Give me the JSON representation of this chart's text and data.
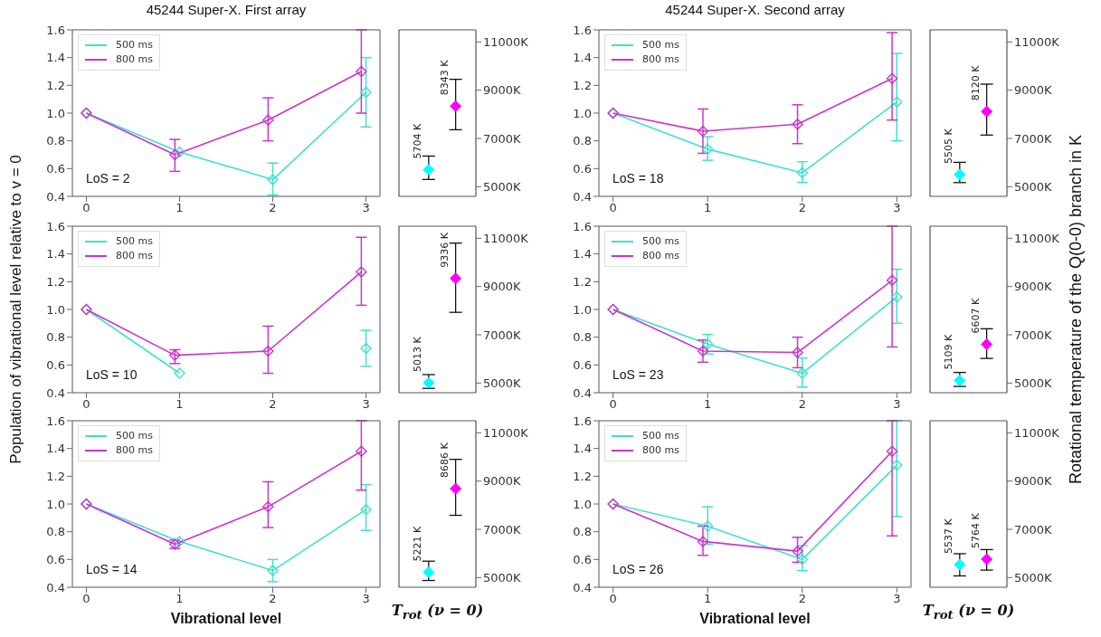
{
  "chart_data": [
    {
      "type": "line",
      "title": "45244 Super-X.  First array",
      "xlim": [
        -0.15,
        3.15
      ],
      "xticks": [
        0,
        1,
        2,
        3
      ],
      "ylim": [
        0.4,
        1.6
      ],
      "yticks": [
        0.4,
        0.6,
        0.8,
        {
          "value": 1,
          "label": "1.0"
        },
        1.2,
        1.4,
        1.6
      ],
      "legend": "top left",
      "marker": "diamond",
      "annotations": [
        "LoS = 2"
      ],
      "series": [
        {
          "name": "500 ms",
          "color": "#40e0d0",
          "x": [
            0,
            1,
            2,
            3
          ],
          "values": [
            1.0,
            0.72,
            0.52,
            1.15
          ],
          "errors": [
            null,
            null,
            [
              0.41,
              0.64
            ],
            [
              0.9,
              1.4
            ]
          ]
        },
        {
          "name": "800 ms",
          "color": "#cc33cc",
          "x": [
            0,
            0.95,
            1.95,
            2.95
          ],
          "values": [
            1.0,
            0.7,
            0.95,
            1.3
          ],
          "errors": [
            null,
            [
              0.58,
              0.81
            ],
            [
              0.8,
              1.11
            ],
            [
              1.0,
              1.6
            ]
          ]
        }
      ]
    },
    {
      "type": "scatter",
      "categories": [
        null,
        null
      ],
      "ylim": [
        4600,
        11500
      ],
      "yticks": [
        {
          "value": 5000,
          "label": "5000K"
        },
        {
          "value": 7000,
          "label": "7000K"
        },
        {
          "value": 9000,
          "label": "9000K"
        },
        {
          "value": 11000,
          "label": "11000K"
        }
      ],
      "marker": "diamond",
      "series": [
        {
          "color": "#00ffff",
          "values": [
            5704,
            null
          ],
          "errors": [
            [
              5300,
              6270
            ],
            null
          ],
          "value_labels": [
            "5704 K",
            null
          ]
        },
        {
          "color": "#ff00ff",
          "values": [
            null,
            8343
          ],
          "errors": [
            null,
            [
              7360,
              9450
            ]
          ],
          "value_labels": [
            null,
            "8343 K"
          ]
        }
      ]
    },
    {
      "type": "line",
      "title": "45244 Super-X.  Second array",
      "xlim": [
        -0.15,
        3.15
      ],
      "xticks": [
        0,
        1,
        2,
        3
      ],
      "ylim": [
        0.4,
        1.6
      ],
      "yticks": [
        0.4,
        0.6,
        0.8,
        {
          "value": 1,
          "label": "1.0"
        },
        1.2,
        1.4,
        1.6
      ],
      "legend": "top left",
      "marker": "diamond",
      "annotations": [
        "LoS = 18"
      ],
      "series": [
        {
          "name": "500 ms",
          "color": "#40e0d0",
          "x": [
            0,
            1,
            2,
            3
          ],
          "values": [
            1.0,
            0.74,
            0.57,
            1.08
          ],
          "errors": [
            null,
            [
              0.66,
              0.83
            ],
            [
              0.5,
              0.65
            ],
            [
              0.8,
              1.43
            ]
          ]
        },
        {
          "name": "800 ms",
          "color": "#cc33cc",
          "x": [
            0,
            0.95,
            1.95,
            2.95
          ],
          "values": [
            1.0,
            0.87,
            0.92,
            1.25
          ],
          "errors": [
            null,
            [
              0.71,
              1.03
            ],
            [
              0.78,
              1.06
            ],
            [
              0.95,
              1.58
            ]
          ]
        }
      ]
    },
    {
      "type": "scatter",
      "categories": [
        null,
        null
      ],
      "ylim": [
        4600,
        11500
      ],
      "yticks": [
        {
          "value": 5000,
          "label": "5000K"
        },
        {
          "value": 7000,
          "label": "7000K"
        },
        {
          "value": 9000,
          "label": "9000K"
        },
        {
          "value": 11000,
          "label": "11000K"
        }
      ],
      "marker": "diamond",
      "series": [
        {
          "color": "#00ffff",
          "values": [
            5505,
            null
          ],
          "errors": [
            [
              5170,
              6010
            ],
            null
          ],
          "value_labels": [
            "5505 K",
            null
          ]
        },
        {
          "color": "#ff00ff",
          "values": [
            null,
            8120
          ],
          "errors": [
            null,
            [
              7140,
              9250
            ]
          ],
          "value_labels": [
            null,
            "8120 K"
          ]
        }
      ]
    },
    {
      "type": "line",
      "ylabel": "Population of vibrational level relative to v = 0",
      "xlim": [
        -0.15,
        3.15
      ],
      "xticks": [
        0,
        1,
        2,
        3
      ],
      "ylim": [
        0.4,
        1.6
      ],
      "yticks": [
        0.4,
        0.6,
        0.8,
        {
          "value": 1,
          "label": "1.0"
        },
        1.2,
        1.4,
        1.6
      ],
      "legend": "top left",
      "marker": "diamond",
      "annotations": [
        "LoS = 10"
      ],
      "series": [
        {
          "name": "500 ms",
          "color": "#40e0d0",
          "x": [
            0,
            1,
            2,
            3
          ],
          "values": [
            1.0,
            0.54,
            null,
            0.72
          ],
          "errors": [
            null,
            null,
            null,
            [
              0.59,
              0.85
            ]
          ]
        },
        {
          "name": "800 ms",
          "color": "#cc33cc",
          "x": [
            0,
            0.95,
            1.95,
            2.95
          ],
          "values": [
            1.0,
            0.67,
            0.7,
            1.27
          ],
          "errors": [
            null,
            [
              0.61,
              0.71
            ],
            [
              0.54,
              0.88
            ],
            [
              1.03,
              1.52
            ]
          ]
        }
      ]
    },
    {
      "type": "scatter",
      "categories": [
        null,
        null
      ],
      "ylim": [
        4600,
        11500
      ],
      "yticks": [
        {
          "value": 5000,
          "label": "5000K"
        },
        {
          "value": 7000,
          "label": "7000K"
        },
        {
          "value": 9000,
          "label": "9000K"
        },
        {
          "value": 11000,
          "label": "11000K"
        }
      ],
      "marker": "diamond",
      "series": [
        {
          "color": "#00ffff",
          "values": [
            5013,
            null
          ],
          "errors": [
            [
              4780,
              5350
            ],
            null
          ],
          "value_labels": [
            "5013 K",
            null
          ]
        },
        {
          "color": "#ff00ff",
          "values": [
            null,
            9336
          ],
          "errors": [
            null,
            [
              7930,
              10800
            ]
          ],
          "value_labels": [
            null,
            "9336 K"
          ]
        }
      ]
    },
    {
      "type": "line",
      "xlim": [
        -0.15,
        3.15
      ],
      "xticks": [
        0,
        1,
        2,
        3
      ],
      "ylim": [
        0.4,
        1.6
      ],
      "yticks": [
        0.4,
        0.6,
        0.8,
        {
          "value": 1,
          "label": "1.0"
        },
        1.2,
        1.4,
        1.6
      ],
      "legend": "top left",
      "marker": "diamond",
      "annotations": [
        "LoS = 23"
      ],
      "series": [
        {
          "name": "500 ms",
          "color": "#40e0d0",
          "x": [
            0,
            1,
            2,
            3
          ],
          "values": [
            1.0,
            0.75,
            0.54,
            1.09
          ],
          "errors": [
            null,
            [
              0.68,
              0.82
            ],
            [
              0.44,
              0.65
            ],
            [
              0.9,
              1.29
            ]
          ]
        },
        {
          "name": "800 ms",
          "color": "#cc33cc",
          "x": [
            0,
            0.95,
            1.95,
            2.95
          ],
          "values": [
            1.0,
            0.7,
            0.69,
            1.21
          ],
          "errors": [
            null,
            [
              0.62,
              0.78
            ],
            [
              0.58,
              0.8
            ],
            [
              0.73,
              1.6
            ]
          ]
        }
      ]
    },
    {
      "type": "scatter",
      "ylabel": "Rotational temperature of the Q(0-0) branch in K",
      "categories": [
        null,
        null
      ],
      "ylim": [
        4600,
        11500
      ],
      "yticks": [
        {
          "value": 5000,
          "label": "5000K"
        },
        {
          "value": 7000,
          "label": "7000K"
        },
        {
          "value": 9000,
          "label": "9000K"
        },
        {
          "value": 11000,
          "label": "11000K"
        }
      ],
      "marker": "diamond",
      "series": [
        {
          "color": "#00ffff",
          "values": [
            5109,
            null
          ],
          "errors": [
            [
              4860,
              5440
            ],
            null
          ],
          "value_labels": [
            "5109 K",
            null
          ]
        },
        {
          "color": "#ff00ff",
          "values": [
            null,
            6607
          ],
          "errors": [
            null,
            [
              6020,
              7250
            ]
          ],
          "value_labels": [
            null,
            "6607 K"
          ]
        }
      ]
    },
    {
      "type": "line",
      "xlabel": "Vibrational level",
      "xlim": [
        -0.15,
        3.15
      ],
      "xticks": [
        0,
        1,
        2,
        3
      ],
      "ylim": [
        0.4,
        1.6
      ],
      "yticks": [
        0.4,
        0.6,
        0.8,
        {
          "value": 1,
          "label": "1.0"
        },
        1.2,
        1.4,
        1.6
      ],
      "legend": "top left",
      "marker": "diamond",
      "annotations": [
        "LoS = 14"
      ],
      "series": [
        {
          "name": "500 ms",
          "color": "#40e0d0",
          "x": [
            0,
            1,
            2,
            3
          ],
          "values": [
            1.0,
            0.73,
            0.52,
            0.96
          ],
          "errors": [
            null,
            null,
            [
              0.44,
              0.6
            ],
            [
              0.81,
              1.14
            ]
          ]
        },
        {
          "name": "800 ms",
          "color": "#cc33cc",
          "x": [
            0,
            0.95,
            1.95,
            2.95
          ],
          "values": [
            1.0,
            0.71,
            0.98,
            1.38
          ],
          "errors": [
            null,
            [
              0.68,
              0.74
            ],
            [
              0.83,
              1.16
            ],
            [
              1.1,
              1.6
            ]
          ]
        }
      ]
    },
    {
      "type": "scatter",
      "xlabel": "T$_{rot}$ (ν = 0)",
      "categories": [
        null,
        null
      ],
      "ylim": [
        4600,
        11500
      ],
      "yticks": [
        {
          "value": 5000,
          "label": "5000K"
        },
        {
          "value": 7000,
          "label": "7000K"
        },
        {
          "value": 9000,
          "label": "9000K"
        },
        {
          "value": 11000,
          "label": "11000K"
        }
      ],
      "marker": "diamond",
      "series": [
        {
          "color": "#00ffff",
          "values": [
            5221,
            null
          ],
          "errors": [
            [
              4880,
              5680
            ],
            null
          ],
          "value_labels": [
            "5221 K",
            null
          ]
        },
        {
          "color": "#ff00ff",
          "values": [
            null,
            8686
          ],
          "errors": [
            null,
            [
              7580,
              9900
            ]
          ],
          "value_labels": [
            null,
            "8686 K"
          ]
        }
      ]
    },
    {
      "type": "line",
      "xlabel": "Vibrational level",
      "xlim": [
        -0.15,
        3.15
      ],
      "xticks": [
        0,
        1,
        2,
        3
      ],
      "ylim": [
        0.4,
        1.6
      ],
      "yticks": [
        0.4,
        0.6,
        0.8,
        {
          "value": 1,
          "label": "1.0"
        },
        1.2,
        1.4,
        1.6
      ],
      "legend": "top left",
      "marker": "diamond",
      "annotations": [
        "LoS = 26"
      ],
      "series": [
        {
          "name": "500 ms",
          "color": "#40e0d0",
          "x": [
            0,
            1,
            2,
            3
          ],
          "values": [
            1.0,
            0.84,
            0.6,
            1.28
          ],
          "errors": [
            null,
            [
              0.71,
              0.98
            ],
            [
              0.52,
              0.7
            ],
            [
              0.91,
              1.6
            ]
          ]
        },
        {
          "name": "800 ms",
          "color": "#cc33cc",
          "x": [
            0,
            0.95,
            1.95,
            2.95
          ],
          "values": [
            1.0,
            0.73,
            0.66,
            1.38
          ],
          "errors": [
            null,
            [
              0.63,
              0.84
            ],
            [
              0.58,
              0.76
            ],
            [
              0.77,
              1.6
            ]
          ]
        }
      ]
    },
    {
      "type": "scatter",
      "xlabel": "T$_{rot}$ (ν = 0)",
      "categories": [
        null,
        null
      ],
      "ylim": [
        4600,
        11500
      ],
      "yticks": [
        {
          "value": 5000,
          "label": "5000K"
        },
        {
          "value": 7000,
          "label": "7000K"
        },
        {
          "value": 9000,
          "label": "9000K"
        },
        {
          "value": 11000,
          "label": "11000K"
        }
      ],
      "marker": "diamond",
      "series": [
        {
          "color": "#00ffff",
          "values": [
            5537,
            null
          ],
          "errors": [
            [
              5070,
              5990
            ],
            null
          ],
          "value_labels": [
            "5537 K",
            null
          ]
        },
        {
          "color": "#ff00ff",
          "values": [
            null,
            5764
          ],
          "errors": [
            null,
            [
              5310,
              6160
            ]
          ],
          "value_labels": [
            null,
            "5764 K"
          ]
        }
      ]
    }
  ]
}
